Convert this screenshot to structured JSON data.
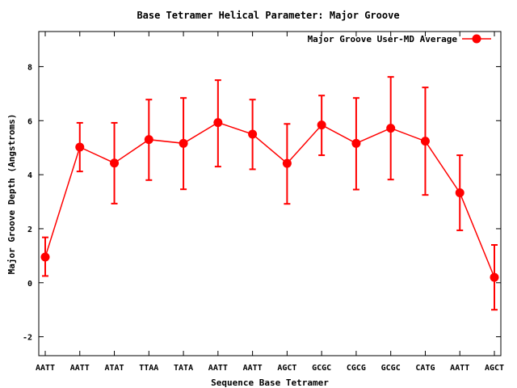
{
  "chart_data": {
    "type": "line",
    "title": "Base Tetramer Helical Parameter: Major Groove",
    "xlabel": "Sequence Base Tetramer",
    "ylabel": "Major Groove Depth (Angstroms)",
    "ylim": [
      -2.7,
      9.3
    ],
    "yticks": [
      -2,
      0,
      2,
      4,
      6,
      8
    ],
    "categories": [
      "AATT",
      "AATT",
      "ATAT",
      "TTAA",
      "TATA",
      "AATT",
      "AATT",
      "AGCT",
      "GCGC",
      "CGCG",
      "GCGC",
      "CATG",
      "AATT",
      "AGCT"
    ],
    "legend_position": "top-right",
    "grid": false,
    "series": [
      {
        "name": "Major Groove User-MD Average",
        "color": "#ff0000",
        "values": [
          0.95,
          5.02,
          4.43,
          5.3,
          5.16,
          5.93,
          5.5,
          4.42,
          5.84,
          5.16,
          5.72,
          5.24,
          3.33,
          0.2
        ],
        "error_low": [
          0.25,
          4.12,
          2.93,
          3.8,
          3.46,
          4.3,
          4.2,
          2.92,
          4.72,
          3.45,
          3.82,
          3.25,
          1.94,
          -1.0
        ],
        "error_high": [
          1.68,
          5.92,
          5.92,
          6.78,
          6.84,
          7.5,
          6.78,
          5.88,
          6.93,
          6.84,
          7.62,
          7.23,
          4.72,
          1.4
        ]
      }
    ]
  }
}
